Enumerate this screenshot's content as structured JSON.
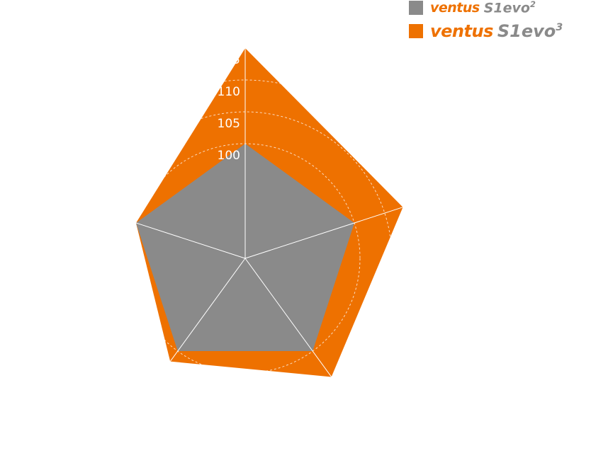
{
  "chart_data": {
    "type": "radar",
    "axes_count": 5,
    "radial_ticks": [
      "100",
      "105",
      "110",
      "115"
    ],
    "radial_tick_values": [
      100,
      105,
      110,
      115
    ],
    "series": [
      {
        "name": "ventus S1evo2",
        "brand": "ventus",
        "model": "S1evo",
        "suffix": "2",
        "color": "#8a8a8a",
        "values": [
          100,
          100,
          100,
          100,
          100
        ]
      },
      {
        "name": "ventus S1evo3",
        "brand": "ventus",
        "model": "S1evo",
        "suffix": "3",
        "color": "#ee7100",
        "values": [
          115,
          108,
          105,
          102,
          100
        ]
      }
    ],
    "grid": true,
    "legend": "top-right"
  }
}
